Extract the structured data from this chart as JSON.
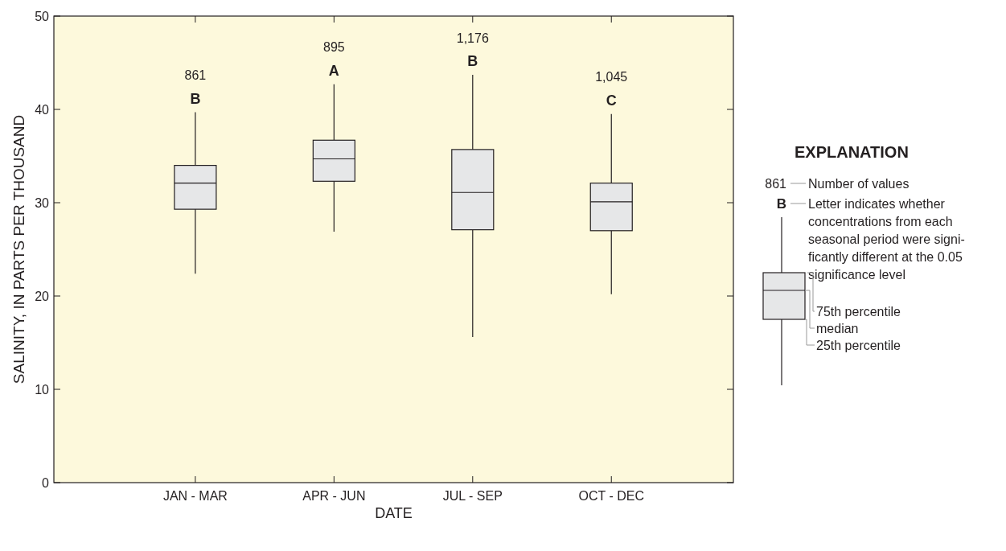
{
  "chart_data": {
    "type": "box",
    "xlabel": "DATE",
    "ylabel": "SALINITY, IN PARTS PER THOUSAND",
    "categories": [
      "JAN - MAR",
      "APR - JUN",
      "JUL - SEP",
      "OCT - DEC"
    ],
    "boxes": [
      {
        "low": 22.4,
        "q1": 29.3,
        "median": 32.1,
        "q3": 34.0,
        "high": 39.7
      },
      {
        "low": 26.9,
        "q1": 32.3,
        "median": 34.7,
        "q3": 36.7,
        "high": 42.7
      },
      {
        "low": 15.6,
        "q1": 27.1,
        "median": 31.1,
        "q3": 35.7,
        "high": 43.7
      },
      {
        "low": 20.2,
        "q1": 27.0,
        "median": 30.1,
        "q3": 32.1,
        "high": 39.5
      }
    ],
    "color": "#e6e7e8",
    "ylim": [
      0,
      50
    ],
    "yticks": [
      0,
      10,
      20,
      30,
      40,
      50
    ],
    "grid": false,
    "annotations": [
      "861",
      "B",
      "895",
      "A",
      "1,176",
      "B",
      "1,045",
      "C",
      "EXPLANATION",
      "861",
      "Number of values",
      "B",
      "Letter indicates whether",
      "concentrations from each",
      "seasonal period were signi-",
      "ficantly different at the 0.05",
      "significance level",
      "75th percentile",
      "median",
      "25th percentile"
    ]
  }
}
